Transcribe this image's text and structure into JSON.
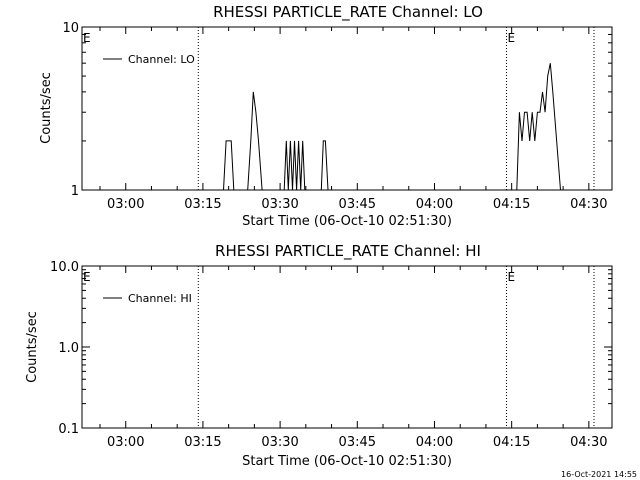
{
  "footer": {
    "timestamp": "16-Oct-2021 14:55"
  },
  "chart_data": [
    {
      "type": "line",
      "title": "RHESSI PARTICLE_RATE Channel: LO",
      "xlabel": "Start Time (06-Oct-10 02:51:30)",
      "ylabel": "Counts/sec",
      "y_scale": "log",
      "ylim": [
        1,
        10
      ],
      "y_ticks": [
        {
          "v": 1,
          "label": "1"
        },
        {
          "v": 10,
          "label": "10"
        }
      ],
      "x_ticks": [
        "03:00",
        "03:15",
        "03:30",
        "03:45",
        "04:00",
        "04:15",
        "04:30"
      ],
      "x_tick_minutes": [
        180,
        195,
        210,
        225,
        240,
        255,
        270
      ],
      "xlim_minutes": [
        171.5,
        274.5
      ],
      "vlines_minutes": [
        194.1,
        254.0,
        271.0
      ],
      "markers": [
        {
          "x_minutes": 171.5,
          "label": "E"
        },
        {
          "x_minutes": 254.0,
          "label": "E"
        }
      ],
      "legend": {
        "label": "Channel: LO",
        "position": "top-left"
      },
      "series": [
        {
          "name": "Channel: LO",
          "color": "#000000",
          "x": [
            171.5,
            199.0,
            199.5,
            200.5,
            201.0,
            203.7,
            204.3,
            204.8,
            205.3,
            205.8,
            206.5,
            210.8,
            211.2,
            211.6,
            212.0,
            212.4,
            212.8,
            213.2,
            213.6,
            214.0,
            214.4,
            214.8,
            215.2,
            218.0,
            218.4,
            218.8,
            219.3,
            256.0,
            256.5,
            257.0,
            257.5,
            258.0,
            258.5,
            259.0,
            259.5,
            260.0,
            260.5,
            261.0,
            261.5,
            262.0,
            262.5,
            263.0,
            264.5,
            274.5
          ],
          "y": [
            1,
            1,
            2,
            2,
            1,
            1,
            2,
            4,
            3,
            2,
            1,
            1,
            2,
            1,
            2,
            1,
            2,
            1,
            2,
            1,
            2,
            1,
            1,
            1,
            2,
            2,
            1,
            1,
            3,
            2,
            3,
            3,
            2,
            3,
            2,
            3,
            3,
            4,
            3,
            5,
            6,
            4,
            1,
            1
          ]
        }
      ]
    },
    {
      "type": "line",
      "title": "RHESSI PARTICLE_RATE Channel: HI",
      "xlabel": "Start Time (06-Oct-10 02:51:30)",
      "ylabel": "Counts/sec",
      "y_scale": "log",
      "ylim": [
        0.1,
        10
      ],
      "y_ticks": [
        {
          "v": 0.1,
          "label": "0.1"
        },
        {
          "v": 1,
          "label": "1.0"
        },
        {
          "v": 10,
          "label": "10.0"
        }
      ],
      "x_ticks": [
        "03:00",
        "03:15",
        "03:30",
        "03:45",
        "04:00",
        "04:15",
        "04:30"
      ],
      "x_tick_minutes": [
        180,
        195,
        210,
        225,
        240,
        255,
        270
      ],
      "xlim_minutes": [
        171.5,
        274.5
      ],
      "vlines_minutes": [
        194.1,
        254.0,
        271.0
      ],
      "markers": [
        {
          "x_minutes": 171.5,
          "label": "E"
        },
        {
          "x_minutes": 254.0,
          "label": "E"
        }
      ],
      "legend": {
        "label": "Channel: HI",
        "position": "top-left"
      },
      "series": [
        {
          "name": "Channel: HI",
          "color": "#000000",
          "x": [],
          "y": []
        }
      ]
    }
  ]
}
